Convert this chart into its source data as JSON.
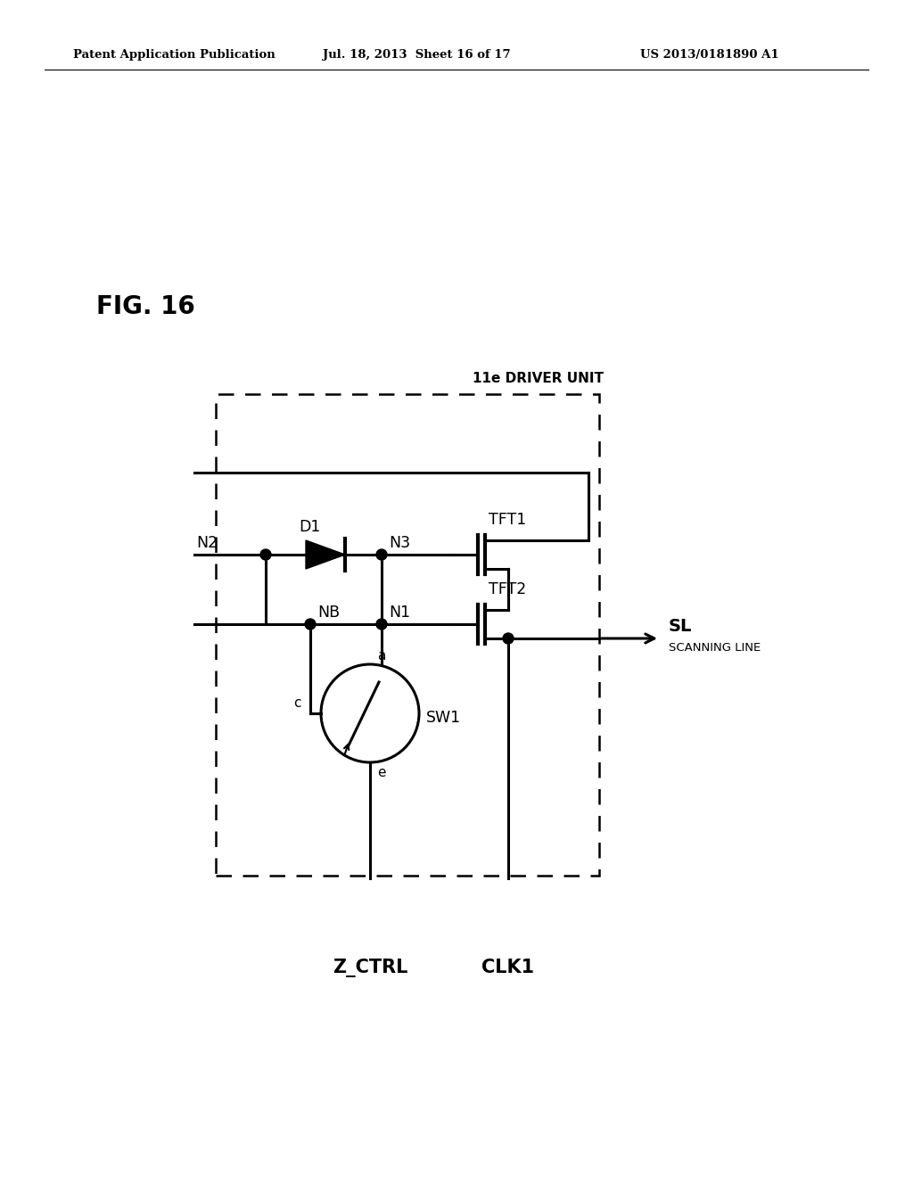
{
  "title": "FIG. 16",
  "header_left": "Patent Application Publication",
  "header_center": "Jul. 18, 2013  Sheet 16 of 17",
  "header_right": "US 2013/0181890 A1",
  "driver_label": "11e DRIVER UNIT",
  "background": "#ffffff",
  "line_color": "#000000",
  "text_color": "#000000",
  "fig_w": 10.24,
  "fig_h": 13.2
}
